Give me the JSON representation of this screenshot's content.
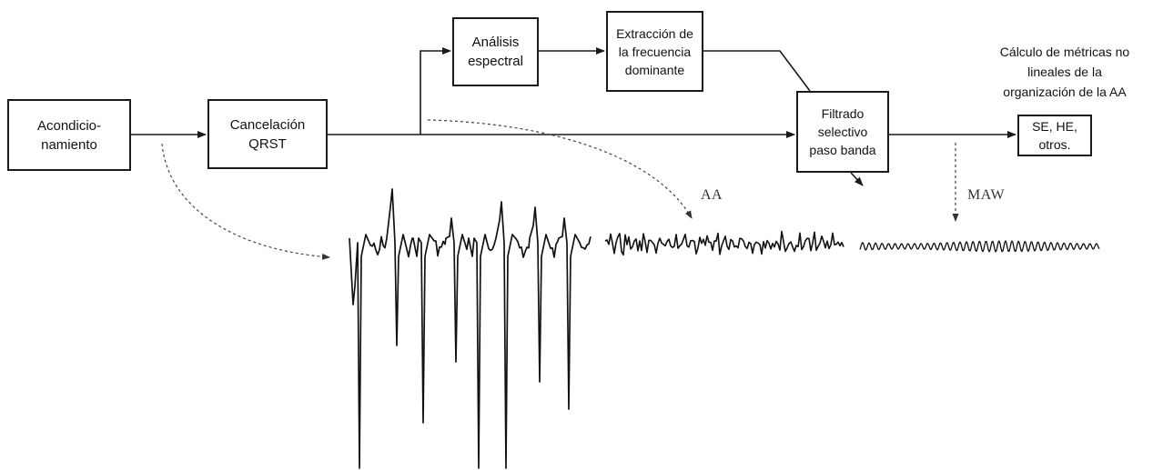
{
  "blocks": {
    "acondicionamiento": [
      "Acondicio-",
      "namiento"
    ],
    "cancelacion": [
      "Cancelación",
      "QRST"
    ],
    "analisis": [
      "Análisis",
      "espectral"
    ],
    "extraccion": [
      "Extracción de",
      "la frecuencia",
      "dominante"
    ],
    "filtrado": [
      "Filtrado",
      "selectivo",
      "paso banda"
    ],
    "metricas": [
      "SE, HE,",
      "otros."
    ]
  },
  "metrics_title": [
    "Cálculo de métricas no",
    "lineales de la",
    "organización de la AA"
  ],
  "signal_labels": {
    "aa": "AA",
    "maw": "MAW"
  },
  "colors": {
    "line": "#1a1a1a",
    "dashed": "#444444"
  }
}
